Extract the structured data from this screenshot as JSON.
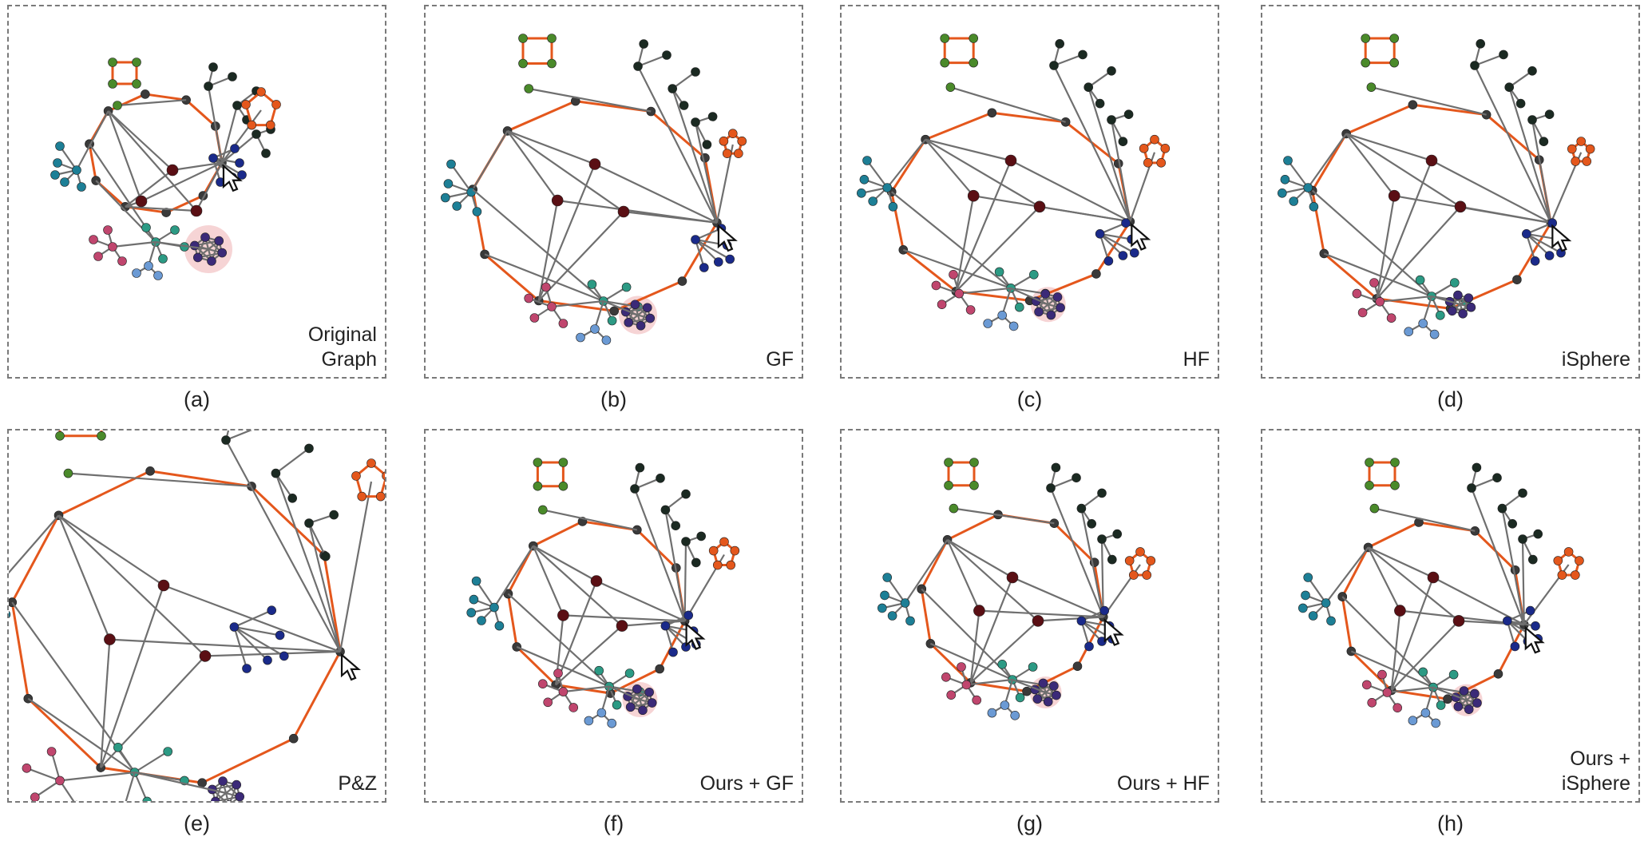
{
  "panels": [
    {
      "caption": "(a)",
      "label": "Original\nGraph"
    },
    {
      "caption": "(b)",
      "label": "GF"
    },
    {
      "caption": "(c)",
      "label": "HF"
    },
    {
      "caption": "(d)",
      "label": "iSphere"
    },
    {
      "caption": "(e)",
      "label": "P&Z"
    },
    {
      "caption": "(f)",
      "label": "Ours + GF"
    },
    {
      "caption": "(g)",
      "label": "Ours + HF"
    },
    {
      "caption": "(h)",
      "label": "Ours +\niSphere"
    }
  ],
  "colors": {
    "edge": "#6f6f6f",
    "highlight_edge": "#e4571c",
    "focus_halo": "#f4c9cb",
    "border": "#7a7a7a",
    "node_dark": "#1b2a22",
    "node_gray": "#3a3a3a",
    "node_green": "#4a8a2a",
    "node_teal": "#2c9a84",
    "node_cyan": "#1d7f96",
    "node_navy": "#1a2a8a",
    "node_purple": "#3b2a78",
    "node_pink": "#c0466e",
    "node_maroon": "#5a0f14",
    "node_blue": "#6b9ad4",
    "node_orange": "#e4571c"
  },
  "icons": {
    "cursor": "mouse-pointer-icon"
  }
}
